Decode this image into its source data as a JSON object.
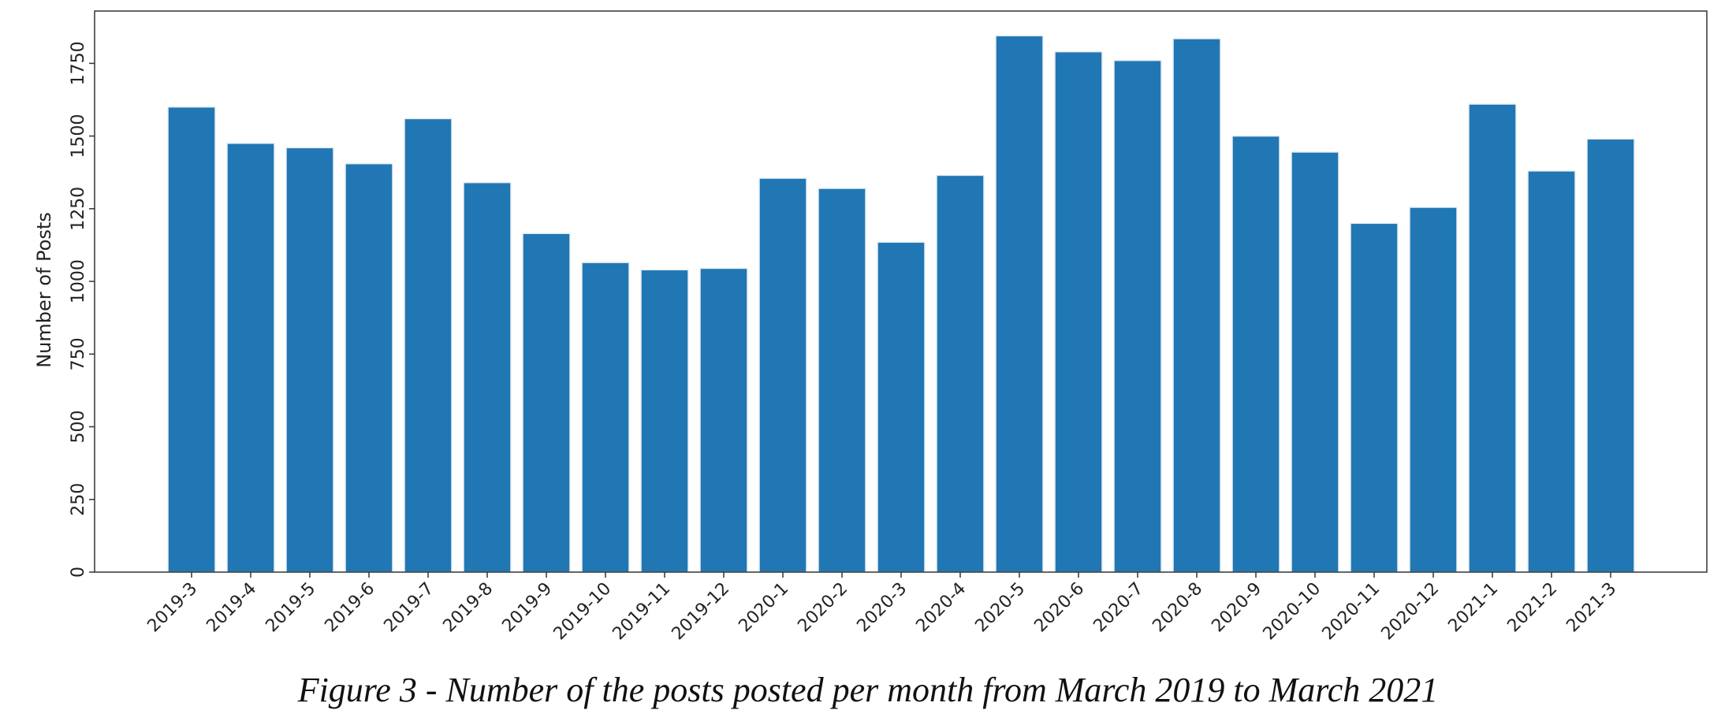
{
  "caption": "Figure 3 - Number of the posts posted per month from March 2019 to March 2021",
  "chart_data": {
    "type": "bar",
    "title": "",
    "xlabel": "",
    "ylabel": "Number of Posts",
    "categories": [
      "2019-3",
      "2019-4",
      "2019-5",
      "2019-6",
      "2019-7",
      "2019-8",
      "2019-9",
      "2019-10",
      "2019-11",
      "2019-12",
      "2020-1",
      "2020-2",
      "2020-3",
      "2020-4",
      "2020-5",
      "2020-6",
      "2020-7",
      "2020-8",
      "2020-9",
      "2020-10",
      "2020-11",
      "2020-12",
      "2021-1",
      "2021-2",
      "2021-3"
    ],
    "values": [
      1600,
      1475,
      1460,
      1405,
      1560,
      1340,
      1165,
      1065,
      1040,
      1045,
      1355,
      1320,
      1135,
      1365,
      1845,
      1790,
      1760,
      1835,
      1500,
      1445,
      1200,
      1255,
      1610,
      1380,
      1490
    ],
    "ylim": [
      0,
      1930
    ],
    "yticks": [
      0,
      250,
      500,
      750,
      1000,
      1250,
      1500,
      1750
    ],
    "ytick_labels": [
      "0",
      "250",
      "500",
      "750",
      "1000",
      "1250",
      "1500",
      "1750"
    ],
    "grid": false,
    "bar_color": "#2077b4",
    "bar_edge_color": "#e8eef5",
    "axis_color": "#333333"
  }
}
